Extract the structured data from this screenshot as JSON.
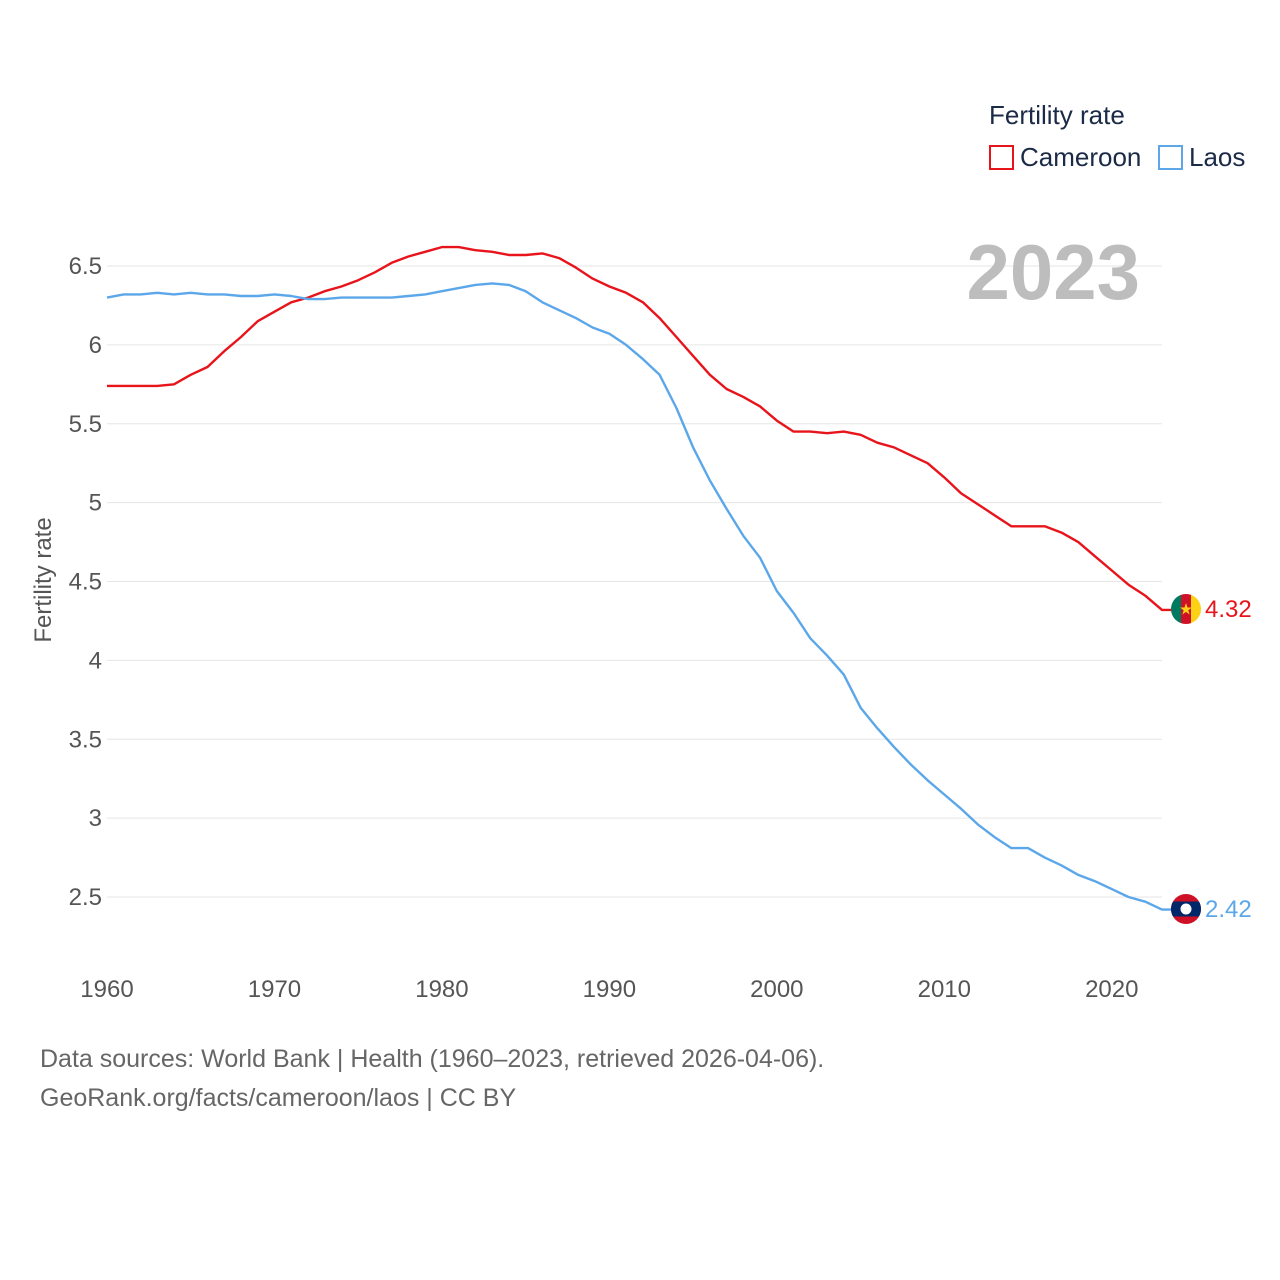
{
  "chart_data": {
    "type": "line",
    "ylabel": "Fertility rate",
    "xlabel": "",
    "ylim": [
      2.2,
      6.8
    ],
    "xlim": [
      1960,
      2023
    ],
    "yticks": [
      2.5,
      3,
      3.5,
      4,
      4.5,
      5,
      5.5,
      6,
      6.5
    ],
    "ytick_labels": [
      "2.5",
      "3",
      "3.5",
      "4",
      "4.5",
      "5",
      "5.5",
      "6",
      "6.5"
    ],
    "xticks": [
      1960,
      1970,
      1980,
      1990,
      2000,
      2010,
      2020
    ],
    "xtick_labels": [
      "1960",
      "1970",
      "1980",
      "1990",
      "2000",
      "2010",
      "2020"
    ],
    "legend_title": "Fertility rate",
    "legend_position": "top-right",
    "current_year": "2023",
    "series": [
      {
        "name": "Cameroon",
        "color": "#e8141c",
        "end_label": "4.32",
        "flag": "cameroon-flag",
        "x": [
          1960,
          1961,
          1962,
          1963,
          1964,
          1965,
          1966,
          1967,
          1968,
          1969,
          1970,
          1971,
          1972,
          1973,
          1974,
          1975,
          1976,
          1977,
          1978,
          1979,
          1980,
          1981,
          1982,
          1983,
          1984,
          1985,
          1986,
          1987,
          1988,
          1989,
          1990,
          1991,
          1992,
          1993,
          1994,
          1995,
          1996,
          1997,
          1998,
          1999,
          2000,
          2001,
          2002,
          2003,
          2004,
          2005,
          2006,
          2007,
          2008,
          2009,
          2010,
          2011,
          2012,
          2013,
          2014,
          2015,
          2016,
          2017,
          2018,
          2019,
          2020,
          2021,
          2022,
          2023
        ],
        "values": [
          5.74,
          5.74,
          5.74,
          5.74,
          5.75,
          5.81,
          5.86,
          5.96,
          6.05,
          6.15,
          6.21,
          6.27,
          6.3,
          6.34,
          6.37,
          6.41,
          6.46,
          6.52,
          6.56,
          6.59,
          6.62,
          6.62,
          6.6,
          6.59,
          6.57,
          6.57,
          6.58,
          6.55,
          6.49,
          6.42,
          6.37,
          6.33,
          6.27,
          6.17,
          6.05,
          5.93,
          5.81,
          5.72,
          5.67,
          5.61,
          5.52,
          5.45,
          5.45,
          5.44,
          5.45,
          5.43,
          5.38,
          5.35,
          5.3,
          5.25,
          5.16,
          5.06,
          4.99,
          4.92,
          4.85,
          4.85,
          4.85,
          4.81,
          4.75,
          4.66,
          4.57,
          4.48,
          4.41,
          4.32
        ]
      },
      {
        "name": "Laos",
        "color": "#5ba7ea",
        "end_label": "2.42",
        "flag": "laos-flag",
        "x": [
          1960,
          1961,
          1962,
          1963,
          1964,
          1965,
          1966,
          1967,
          1968,
          1969,
          1970,
          1971,
          1972,
          1973,
          1974,
          1975,
          1976,
          1977,
          1978,
          1979,
          1980,
          1981,
          1982,
          1983,
          1984,
          1985,
          1986,
          1987,
          1988,
          1989,
          1990,
          1991,
          1992,
          1993,
          1994,
          1995,
          1996,
          1997,
          1998,
          1999,
          2000,
          2001,
          2002,
          2003,
          2004,
          2005,
          2006,
          2007,
          2008,
          2009,
          2010,
          2011,
          2012,
          2013,
          2014,
          2015,
          2016,
          2017,
          2018,
          2019,
          2020,
          2021,
          2022,
          2023
        ],
        "values": [
          6.3,
          6.32,
          6.32,
          6.33,
          6.32,
          6.33,
          6.32,
          6.32,
          6.31,
          6.31,
          6.32,
          6.31,
          6.29,
          6.29,
          6.3,
          6.3,
          6.3,
          6.3,
          6.31,
          6.32,
          6.34,
          6.36,
          6.38,
          6.39,
          6.38,
          6.34,
          6.27,
          6.22,
          6.17,
          6.11,
          6.07,
          6.0,
          5.91,
          5.81,
          5.6,
          5.35,
          5.14,
          4.96,
          4.79,
          4.65,
          4.44,
          4.3,
          4.14,
          4.03,
          3.91,
          3.7,
          3.57,
          3.45,
          3.34,
          3.24,
          3.15,
          3.06,
          2.96,
          2.88,
          2.81,
          2.81,
          2.75,
          2.7,
          2.64,
          2.6,
          2.55,
          2.5,
          2.47,
          2.42
        ]
      }
    ]
  },
  "footer": {
    "line1": "Data sources: World Bank | Health (1960–2023, retrieved 2026-04-06).",
    "line2": "GeoRank.org/facts/cameroon/laos | CC BY"
  }
}
